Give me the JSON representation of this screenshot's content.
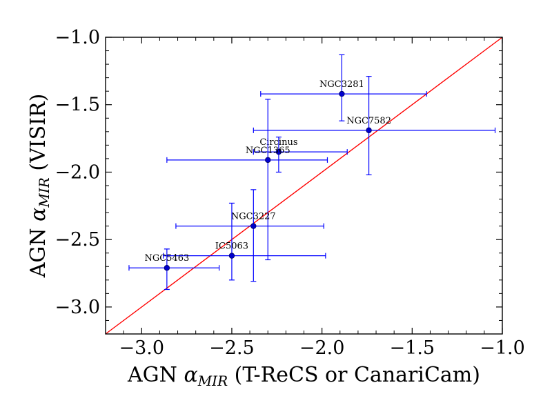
{
  "chart_data": {
    "type": "scatter",
    "title": "",
    "xlabel": {
      "prefix": "AGN ",
      "symbol": "α",
      "subscript": "MIR",
      "suffix": " (T-ReCS or CanariCam)"
    },
    "ylabel": {
      "prefix": "AGN ",
      "symbol": "α",
      "subscript": "MIR",
      "suffix": " (VISIR)"
    },
    "xlim": [
      -3.2,
      -1.0
    ],
    "ylim": [
      -3.2,
      -1.0
    ],
    "xticks": [
      -3.0,
      -2.5,
      -2.0,
      -1.5,
      -1.0
    ],
    "yticks": [
      -3.0,
      -2.5,
      -2.0,
      -1.5,
      -1.0
    ],
    "xtick_labels": [
      "−3.0",
      "−2.5",
      "−2.0",
      "−1.5",
      "−1.0"
    ],
    "ytick_labels": [
      "−3.0",
      "−2.5",
      "−2.0",
      "−1.5",
      "−1.0"
    ],
    "grid": false,
    "one_to_one_line": {
      "from": [
        -3.2,
        -3.2
      ],
      "to": [
        -1.0,
        -1.0
      ],
      "color": "#ff0000"
    },
    "marker_color": "#0000cc",
    "errorbar_color": "#0000ff",
    "points": [
      {
        "name": "NGC3281",
        "x": -1.89,
        "y": -1.42,
        "xerr": [
          0.45,
          0.47
        ],
        "yerr": [
          0.2,
          0.29
        ]
      },
      {
        "name": "NGC7582",
        "x": -1.74,
        "y": -1.69,
        "xerr": [
          0.64,
          0.7
        ],
        "yerr": [
          0.33,
          0.4
        ]
      },
      {
        "name": "Circinus",
        "x": -2.24,
        "y": -1.85,
        "xerr": [
          0.14,
          0.38
        ],
        "yerr": [
          0.15,
          0.11
        ]
      },
      {
        "name": "NGC1365",
        "x": -2.3,
        "y": -1.91,
        "xerr": [
          0.56,
          0.33
        ],
        "yerr": [
          0.74,
          0.45
        ]
      },
      {
        "name": "NGC3227",
        "x": -2.38,
        "y": -2.4,
        "xerr": [
          0.43,
          0.39
        ],
        "yerr": [
          0.41,
          0.27
        ]
      },
      {
        "name": "IC5063",
        "x": -2.5,
        "y": -2.62,
        "xerr": [
          0.38,
          0.52
        ],
        "yerr": [
          0.18,
          0.39
        ]
      },
      {
        "name": "NGC5463",
        "x": -2.86,
        "y": -2.71,
        "xerr": [
          0.21,
          0.29
        ],
        "yerr": [
          0.16,
          0.14
        ]
      }
    ]
  }
}
